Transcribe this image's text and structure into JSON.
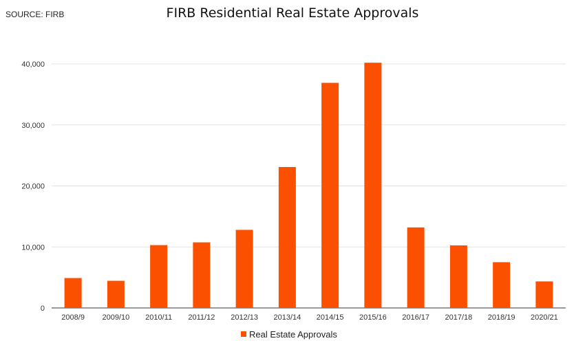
{
  "source_label": "SOURCE: FIRB",
  "chart_data": {
    "type": "bar",
    "title": "FIRB Residential Real Estate Approvals",
    "categories": [
      "2008/9",
      "2009/10",
      "2010/11",
      "2011/12",
      "2012/13",
      "2013/14",
      "2014/15",
      "2015/16",
      "2016/17",
      "2017/18",
      "2018/19",
      "2020/21"
    ],
    "series": [
      {
        "name": "Real Estate Approvals",
        "values": [
          4900,
          4450,
          10300,
          10750,
          12800,
          23100,
          36900,
          40200,
          13200,
          10250,
          7500,
          4350
        ]
      }
    ],
    "ylim": [
      0,
      40000
    ],
    "yticks": [
      0,
      10000,
      20000,
      30000,
      40000
    ],
    "ytick_labels": [
      "0",
      "10,000",
      "20,000",
      "30,000",
      "40,000"
    ],
    "grid": true,
    "legend_position": "bottom",
    "bar_color": "#fa5000",
    "grid_color": "#e3e3e3"
  }
}
